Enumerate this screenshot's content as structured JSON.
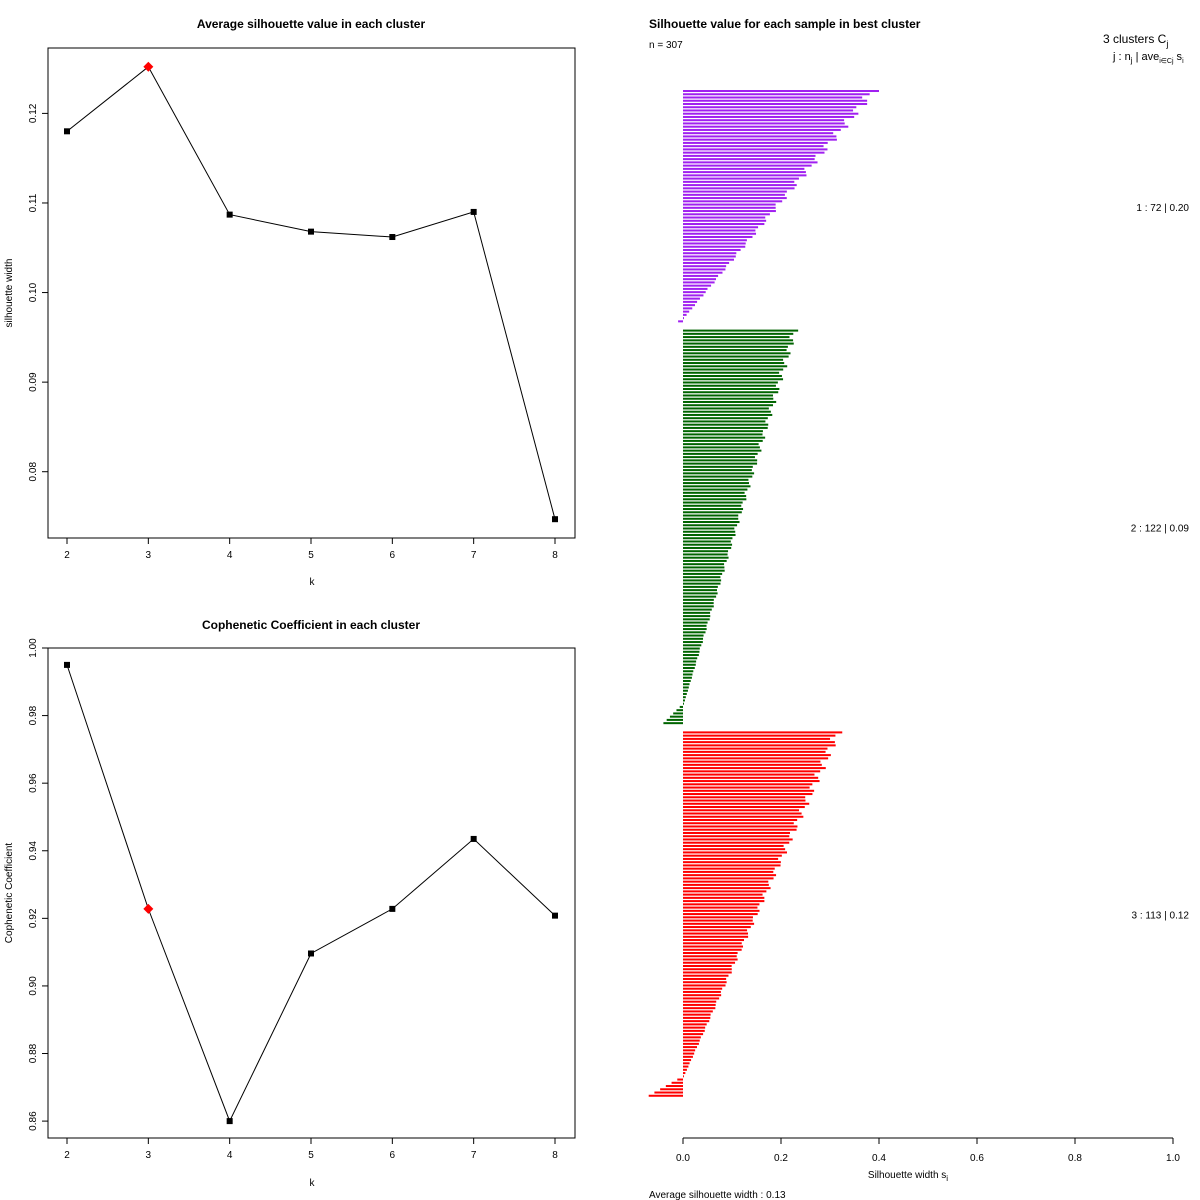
{
  "chart_data": [
    {
      "type": "line",
      "title": "Average silhouette value in each cluster",
      "xlabel": "k",
      "ylabel": "silhouette width",
      "x": [
        2,
        3,
        4,
        5,
        6,
        7,
        8
      ],
      "values": [
        0.118,
        0.1252,
        0.1087,
        0.1068,
        0.1062,
        0.109,
        0.0747
      ],
      "highlight_index": 1,
      "highlight_color": "#ff0000",
      "line_color": "#000000",
      "xlim": [
        2,
        8
      ],
      "ylim": [
        0.0726,
        0.1273
      ],
      "xticks": [
        "2",
        "3",
        "4",
        "5",
        "6",
        "7",
        "8"
      ],
      "yticks": [
        0.08,
        0.09,
        0.1,
        0.11,
        0.12
      ],
      "ytick_labels": [
        "0.08",
        "0.09",
        "0.10",
        "0.11",
        "0.12"
      ]
    },
    {
      "type": "line",
      "title": "Cophenetic Coefficient in each cluster",
      "xlabel": "k",
      "ylabel": "Cophenetic Coefficient",
      "x": [
        2,
        3,
        4,
        5,
        6,
        7,
        8
      ],
      "values": [
        0.995,
        0.9228,
        0.86,
        0.9096,
        0.9228,
        0.9435,
        0.9208
      ],
      "highlight_index": 1,
      "highlight_color": "#ff0000",
      "line_color": "#000000",
      "xlim": [
        2,
        8
      ],
      "ylim": [
        0.855,
        1.0
      ],
      "xticks": [
        "2",
        "3",
        "4",
        "5",
        "6",
        "7",
        "8"
      ],
      "yticks": [
        0.86,
        0.88,
        0.9,
        0.92,
        0.94,
        0.96,
        0.98,
        1.0
      ],
      "ytick_labels": [
        "0.86",
        "0.88",
        "0.90",
        "0.92",
        "0.94",
        "0.96",
        "0.98",
        "1.00"
      ]
    },
    {
      "type": "bar",
      "orientation": "horizontal",
      "title": "Silhouette value for each sample in best cluster",
      "n_label": "n = 307",
      "xlabel": "Silhouette width s",
      "xlabel_sub": "i",
      "xlim": [
        0,
        1
      ],
      "xticks": [
        "0.0",
        "0.2",
        "0.4",
        "0.6",
        "0.8",
        "1.0"
      ],
      "legend_header": "3  clusters  C",
      "legend_header_sub": "j",
      "legend_subheader": "j :  n",
      "legend_subheader_sub": "j",
      "legend_subheader_rest": " | ave",
      "legend_subheader_sub2": "i∈Cj",
      "legend_subheader_end": "  s",
      "legend_subheader_sub3": "i",
      "average_label": "Average silhouette width :  0.13",
      "series": [
        {
          "name": "1",
          "n": 72,
          "avg": 0.2,
          "label": "1 :   72  |  0.20",
          "color": "#a020f0",
          "max": 0.4,
          "min": -0.01,
          "n_negative": 1
        },
        {
          "name": "2",
          "n": 122,
          "avg": 0.09,
          "label": "2 :   122  |  0.09",
          "color": "#006400",
          "max": 0.235,
          "min": -0.04,
          "n_negative": 6
        },
        {
          "name": "3",
          "n": 113,
          "avg": 0.12,
          "label": "3 :   113  |  0.12",
          "color": "#ff0000",
          "max": 0.325,
          "min": -0.07,
          "n_negative": 6
        }
      ]
    }
  ]
}
